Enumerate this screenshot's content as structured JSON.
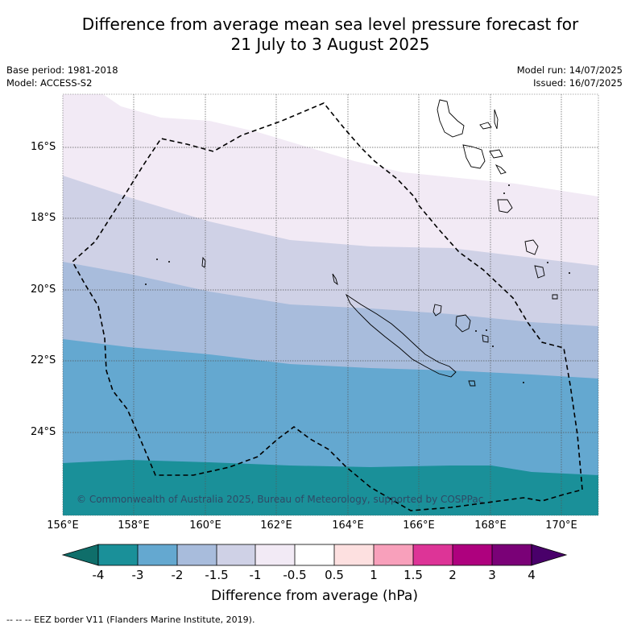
{
  "title_line1": "Difference from average mean sea level pressure forecast for",
  "title_line2": "21 July to 3 August 2025",
  "base_period": "Base period: 1981-2018",
  "model": "Model: ACCESS-S2",
  "model_run": "Model run: 14/07/2025",
  "issued": "Issued: 16/07/2025",
  "credit": "© Commonwealth of Australia 2025, Bureau of Meteorology, supported by COSPPac",
  "lat_labels": [
    "16°S",
    "18°S",
    "20°S",
    "22°S",
    "24°S"
  ],
  "lon_labels": [
    "156°E",
    "158°E",
    "160°E",
    "162°E",
    "164°E",
    "166°E",
    "168°E",
    "170°E"
  ],
  "colorbar": {
    "title": "Difference from average (hPa)",
    "ticks": [
      "-4",
      "-3",
      "-2",
      "-1.5",
      "-1",
      "-0.5",
      "0.5",
      "1",
      "1.5",
      "2",
      "3",
      "4"
    ],
    "colors": [
      "#0f6e6a",
      "#1a9099",
      "#64a8d0",
      "#a8bcdc",
      "#cfd1e6",
      "#f2eaf5",
      "#ffffff",
      "#fde0e0",
      "#f8a0bb",
      "#dd3497",
      "#ae017e",
      "#7a0177",
      "#49006a"
    ]
  },
  "footnote": "-- -- -- EEZ border V11 (Flanders Marine Institute, 2019).",
  "map_extent": {
    "lon_min": 156,
    "lon_max": 171,
    "lat_min": -26.2,
    "lat_max": -14.5
  }
}
